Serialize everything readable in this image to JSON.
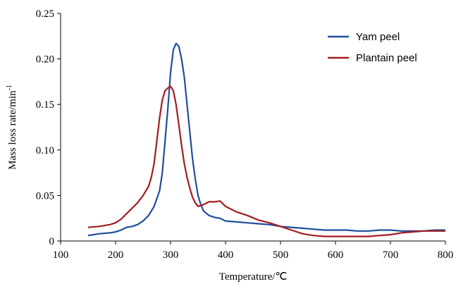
{
  "chart_data": {
    "type": "line",
    "xlabel": "Temperature/℃",
    "ylabel": "Mass loss rate/min",
    "ylabel_superscript": "-1",
    "xlim": [
      100,
      800
    ],
    "ylim": [
      0,
      0.25
    ],
    "x_ticks": [
      "100",
      "200",
      "300",
      "400",
      "500",
      "600",
      "700",
      "800"
    ],
    "y_ticks": [
      "0",
      "0.05",
      "0.10",
      "0.15",
      "0.20",
      "0.25"
    ],
    "grid": false,
    "legend_position": "top-right",
    "series": [
      {
        "name": "Yam peel",
        "color": "#1f4e9c",
        "x": [
          150,
          170,
          190,
          200,
          210,
          220,
          230,
          240,
          250,
          260,
          270,
          280,
          285,
          290,
          295,
          300,
          305,
          310,
          315,
          320,
          325,
          330,
          335,
          340,
          345,
          350,
          355,
          360,
          370,
          380,
          390,
          400,
          420,
          440,
          460,
          480,
          500,
          520,
          540,
          560,
          580,
          600,
          620,
          640,
          660,
          680,
          700,
          720,
          740,
          760,
          780,
          800
        ],
        "y": [
          0.006,
          0.008,
          0.009,
          0.01,
          0.012,
          0.015,
          0.016,
          0.018,
          0.022,
          0.028,
          0.038,
          0.055,
          0.075,
          0.11,
          0.145,
          0.185,
          0.21,
          0.217,
          0.214,
          0.2,
          0.18,
          0.15,
          0.12,
          0.09,
          0.068,
          0.05,
          0.04,
          0.033,
          0.028,
          0.026,
          0.025,
          0.022,
          0.021,
          0.02,
          0.019,
          0.018,
          0.016,
          0.015,
          0.014,
          0.013,
          0.012,
          0.012,
          0.012,
          0.011,
          0.011,
          0.012,
          0.012,
          0.011,
          0.011,
          0.011,
          0.012,
          0.012
        ]
      },
      {
        "name": "Plantain peel",
        "color": "#a31c22",
        "x": [
          150,
          170,
          190,
          200,
          210,
          220,
          230,
          240,
          250,
          260,
          265,
          270,
          275,
          280,
          285,
          290,
          295,
          300,
          305,
          310,
          315,
          320,
          325,
          330,
          335,
          340,
          345,
          350,
          360,
          370,
          380,
          390,
          400,
          420,
          440,
          460,
          480,
          500,
          520,
          540,
          560,
          580,
          600,
          620,
          640,
          660,
          680,
          700,
          720,
          740,
          760,
          780,
          800
        ],
        "y": [
          0.015,
          0.016,
          0.018,
          0.02,
          0.024,
          0.03,
          0.036,
          0.042,
          0.05,
          0.06,
          0.07,
          0.085,
          0.11,
          0.135,
          0.155,
          0.165,
          0.168,
          0.17,
          0.165,
          0.15,
          0.128,
          0.105,
          0.085,
          0.07,
          0.058,
          0.048,
          0.042,
          0.038,
          0.04,
          0.043,
          0.043,
          0.044,
          0.038,
          0.032,
          0.028,
          0.023,
          0.02,
          0.016,
          0.012,
          0.008,
          0.006,
          0.005,
          0.005,
          0.005,
          0.005,
          0.005,
          0.006,
          0.007,
          0.009,
          0.01,
          0.011,
          0.011,
          0.011
        ]
      }
    ]
  }
}
